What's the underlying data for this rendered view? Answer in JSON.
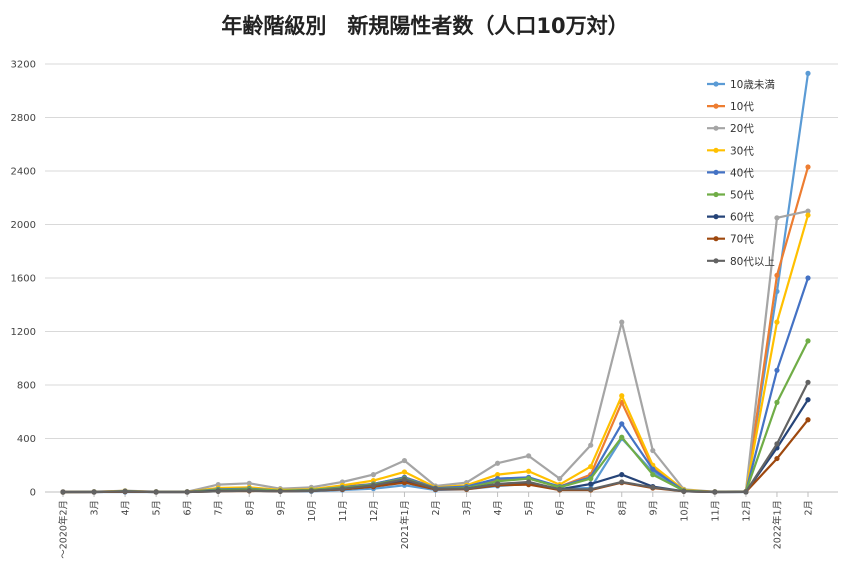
{
  "chart_data": {
    "type": "line",
    "title": "年齢階級別　新規陽性者数（人口10万対）",
    "xlabel": "",
    "ylabel": "",
    "ylim": [
      0,
      3200
    ],
    "yticks": [
      0,
      400,
      800,
      1200,
      1600,
      2000,
      2400,
      2800,
      3200
    ],
    "grid": true,
    "legend_position": "top-right",
    "categories": [
      "～2020年2月",
      "3月",
      "4月",
      "5月",
      "6月",
      "7月",
      "8月",
      "9月",
      "10月",
      "11月",
      "12月",
      "2021年1月",
      "2月",
      "3月",
      "4月",
      "5月",
      "6月",
      "7月",
      "8月",
      "9月",
      "10月",
      "11月",
      "12月",
      "2022年1月",
      "2月"
    ],
    "series": [
      {
        "name": "10歳未満",
        "color": "#5B9BD5",
        "values": [
          0,
          0,
          0,
          0,
          0,
          5,
          10,
          5,
          5,
          15,
          25,
          50,
          15,
          20,
          45,
          60,
          25,
          30,
          400,
          150,
          5,
          0,
          0,
          1500,
          3130
        ]
      },
      {
        "name": "10代",
        "color": "#ED7D31",
        "values": [
          0,
          1,
          5,
          1,
          1,
          20,
          25,
          10,
          15,
          40,
          60,
          110,
          35,
          45,
          90,
          100,
          40,
          130,
          670,
          180,
          10,
          1,
          3,
          1620,
          2430
        ]
      },
      {
        "name": "20代",
        "color": "#A5A5A5",
        "values": [
          0,
          2,
          10,
          2,
          2,
          55,
          65,
          25,
          35,
          75,
          130,
          235,
          45,
          70,
          215,
          270,
          100,
          350,
          1270,
          310,
          20,
          2,
          5,
          2050,
          2100
        ]
      },
      {
        "name": "30代",
        "color": "#FFC000",
        "values": [
          0,
          1,
          8,
          1,
          1,
          30,
          35,
          15,
          20,
          50,
          85,
          150,
          35,
          50,
          130,
          155,
          55,
          190,
          720,
          200,
          15,
          1,
          3,
          1270,
          2070
        ]
      },
      {
        "name": "40代",
        "color": "#4472C4",
        "values": [
          0,
          1,
          6,
          1,
          1,
          20,
          25,
          10,
          15,
          35,
          60,
          110,
          30,
          40,
          100,
          110,
          40,
          110,
          510,
          170,
          10,
          1,
          2,
          910,
          1600
        ]
      },
      {
        "name": "50代",
        "color": "#70AD47",
        "values": [
          0,
          1,
          5,
          1,
          1,
          15,
          20,
          10,
          15,
          30,
          55,
          100,
          25,
          30,
          80,
          100,
          35,
          100,
          410,
          130,
          10,
          1,
          2,
          670,
          1130
        ]
      },
      {
        "name": "60代",
        "color": "#264478",
        "values": [
          0,
          0,
          3,
          0,
          0,
          8,
          10,
          5,
          8,
          20,
          40,
          80,
          20,
          25,
          60,
          70,
          20,
          60,
          130,
          40,
          5,
          0,
          1,
          330,
          690
        ]
      },
      {
        "name": "70代",
        "color": "#9E480E",
        "values": [
          0,
          0,
          3,
          0,
          0,
          5,
          8,
          5,
          8,
          20,
          40,
          70,
          20,
          20,
          50,
          55,
          15,
          15,
          70,
          30,
          5,
          0,
          1,
          250,
          540
        ]
      },
      {
        "name": "80代以上",
        "color": "#636363",
        "values": [
          0,
          0,
          5,
          0,
          0,
          5,
          10,
          5,
          8,
          25,
          50,
          95,
          25,
          25,
          60,
          75,
          20,
          20,
          75,
          35,
          5,
          0,
          1,
          360,
          820
        ]
      }
    ]
  }
}
